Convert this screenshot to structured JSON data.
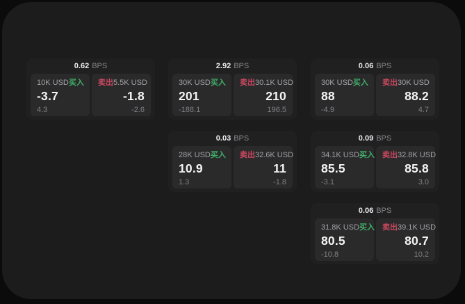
{
  "theme": {
    "background": "#0b0b0c",
    "panel_color": "#1c1c1d",
    "card_color": "#202021",
    "cell_color": "#2a2a2b",
    "accent_green": "#3fae68",
    "accent_red": "#c9485f"
  },
  "cards": [
    {
      "row": 0,
      "col": 0,
      "header": {
        "value": "0.62",
        "unit": "BPS"
      },
      "buy": {
        "amount": "10K USD",
        "side": "买入",
        "value": "-3.7",
        "delta": "4.3"
      },
      "sell": {
        "side": "卖出",
        "amount": "5.5K USD",
        "value": "-1.8",
        "delta": "-2.6"
      }
    },
    {
      "row": 0,
      "col": 1,
      "header": {
        "value": "2.92",
        "unit": "BPS"
      },
      "buy": {
        "amount": "30K USD",
        "side": "买入",
        "value": "201",
        "delta": "-188.1"
      },
      "sell": {
        "side": "卖出",
        "amount": "30.1K USD",
        "value": "210",
        "delta": "196.5"
      }
    },
    {
      "row": 0,
      "col": 2,
      "header": {
        "value": "0.06",
        "unit": "BPS"
      },
      "buy": {
        "amount": "30K USD",
        "side": "买入",
        "value": "88",
        "delta": "-4.9"
      },
      "sell": {
        "side": "卖出",
        "amount": "30K USD",
        "value": "88.2",
        "delta": "4.7"
      }
    },
    {
      "row": 1,
      "col": 1,
      "header": {
        "value": "0.03",
        "unit": "BPS"
      },
      "buy": {
        "amount": "28K USD",
        "side": "买入",
        "value": "10.9",
        "delta": "1.3"
      },
      "sell": {
        "side": "卖出",
        "amount": "32.6K USD",
        "value": "11",
        "delta": "-1.8"
      }
    },
    {
      "row": 1,
      "col": 2,
      "header": {
        "value": "0.09",
        "unit": "BPS"
      },
      "buy": {
        "amount": "34.1K USD",
        "side": "买入",
        "value": "85.5",
        "delta": "-3.1"
      },
      "sell": {
        "side": "卖出",
        "amount": "32.8K USD",
        "value": "85.8",
        "delta": "3.0"
      }
    },
    {
      "row": 2,
      "col": 2,
      "header": {
        "value": "0.06",
        "unit": "BPS"
      },
      "buy": {
        "amount": "31.8K USD",
        "side": "买入",
        "value": "80.5",
        "delta": "-10.8"
      },
      "sell": {
        "side": "卖出",
        "amount": "39.1K USD",
        "value": "80.7",
        "delta": "10.2"
      }
    }
  ]
}
